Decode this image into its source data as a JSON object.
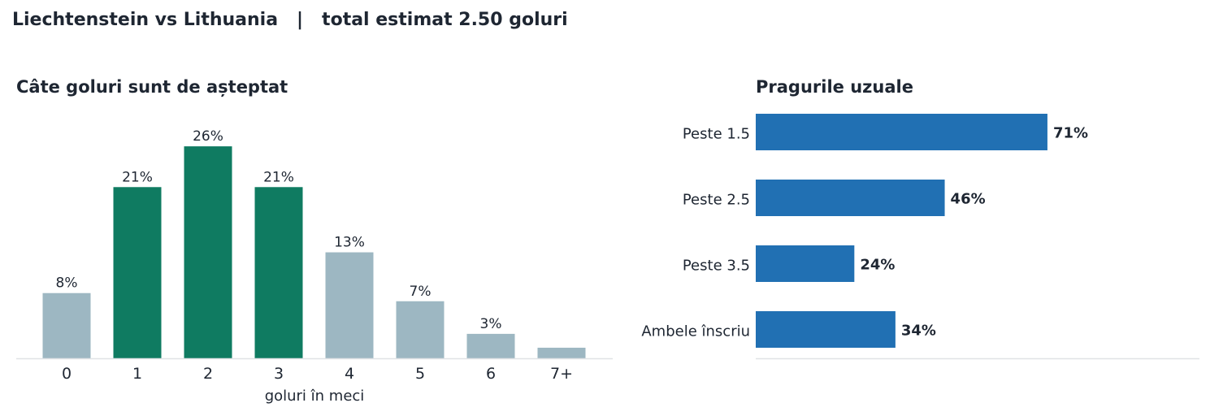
{
  "suptitle": "Liechtenstein vs Lithuania   |   total estimat 2.50 goluri",
  "colors": {
    "highlight": "#0f7b61",
    "muted": "#9db7c2",
    "threshold": "#2170b3",
    "axis": "#e0e3e6"
  },
  "chart_data": [
    {
      "type": "bar",
      "title": "Câte goluri sunt de așteptat",
      "xlabel": "goluri în meci",
      "categories": [
        "0",
        "1",
        "2",
        "3",
        "4",
        "5",
        "6",
        "7+"
      ],
      "values": [
        8,
        21,
        26,
        21,
        13,
        7,
        3,
        1.3
      ],
      "labels": [
        "8%",
        "21%",
        "26%",
        "21%",
        "13%",
        "7%",
        "3%",
        ""
      ],
      "highlighted": [
        false,
        true,
        true,
        true,
        false,
        false,
        false,
        false
      ],
      "ylim": [
        0,
        29
      ]
    },
    {
      "type": "bar",
      "orientation": "horizontal",
      "title": "Pragurile uzuale",
      "categories": [
        "Peste 1.5",
        "Peste 2.5",
        "Peste 3.5",
        "Ambele înscriu"
      ],
      "values": [
        71,
        46,
        24,
        34
      ],
      "labels": [
        "71%",
        "46%",
        "24%",
        "34%"
      ],
      "xlim": [
        0,
        108
      ]
    }
  ]
}
